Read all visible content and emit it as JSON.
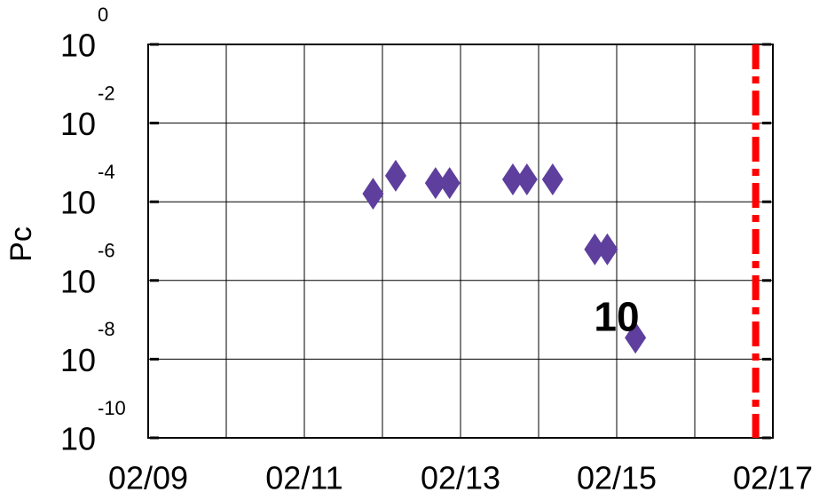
{
  "chart_data": {
    "type": "scatter",
    "ylabel": "Pc",
    "log_y": true,
    "grid": true,
    "color": "#5e3f9e",
    "x": [
      11.88,
      12.17,
      12.68,
      12.86,
      13.67,
      13.85,
      14.18,
      14.72,
      14.88,
      15.24
    ],
    "values": [
      0.00016,
      0.00046,
      0.0003,
      0.0003,
      0.00037,
      0.00037,
      0.00037,
      6.2e-06,
      6.2e-06,
      3.5e-08
    ],
    "xlim": [
      9,
      17
    ],
    "xticks": [
      {
        "value": 9,
        "label": "02/09"
      },
      {
        "value": 11,
        "label": "02/11"
      },
      {
        "value": 13,
        "label": "02/13"
      },
      {
        "value": 15,
        "label": "02/15"
      },
      {
        "value": 17,
        "label": "02/17"
      }
    ],
    "xminorticks": [
      10,
      12,
      14,
      16
    ],
    "ylim": [
      1e-10,
      1
    ],
    "yticks": [
      {
        "value": 1,
        "label": "10",
        "exponent": "0"
      },
      {
        "value": 0.01,
        "label": "10",
        "exponent": "-2"
      },
      {
        "value": 0.0001,
        "label": "10",
        "exponent": "-4"
      },
      {
        "value": 1e-06,
        "label": "10",
        "exponent": "-6"
      },
      {
        "value": 1e-08,
        "label": "10",
        "exponent": "-8"
      },
      {
        "value": 1e-10,
        "label": "10",
        "exponent": "-10"
      }
    ],
    "annotations": [
      {
        "text": "10",
        "x": 15.0,
        "y": 1e-07
      }
    ],
    "vline": {
      "x": 16.78,
      "color": "#ff0000"
    }
  }
}
